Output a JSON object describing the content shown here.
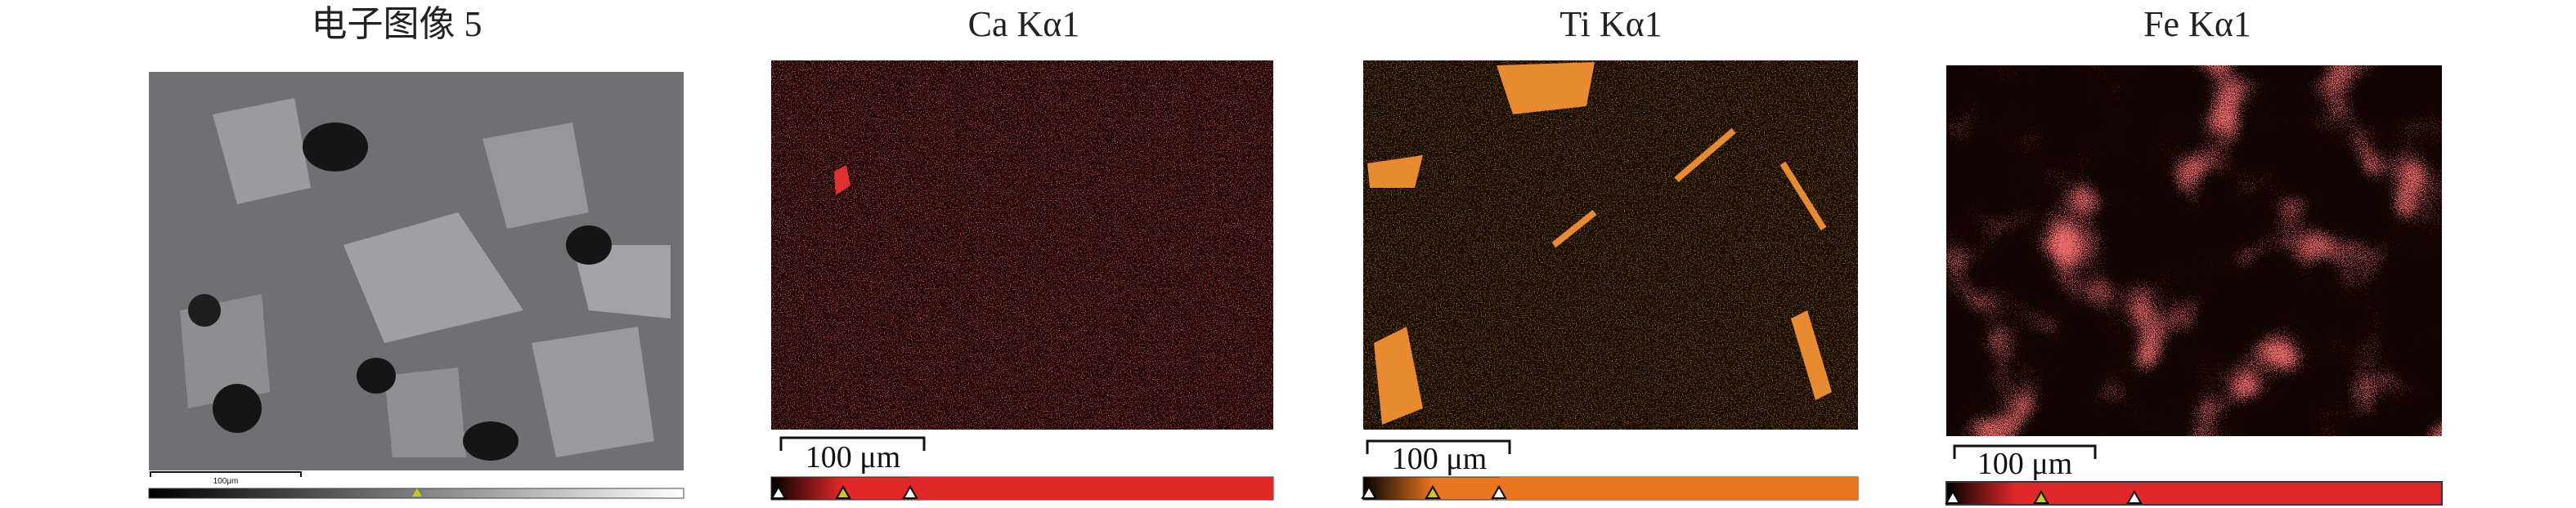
{
  "panels": [
    {
      "title": "电子图像 5",
      "scale_label": "100μm"
    },
    {
      "title": "Ca Kα1",
      "scale_label": "100 μm"
    },
    {
      "title": "Ti Kα1",
      "scale_label": "100 μm"
    },
    {
      "title": "Fe Kα1",
      "scale_label": "100 μm"
    }
  ]
}
